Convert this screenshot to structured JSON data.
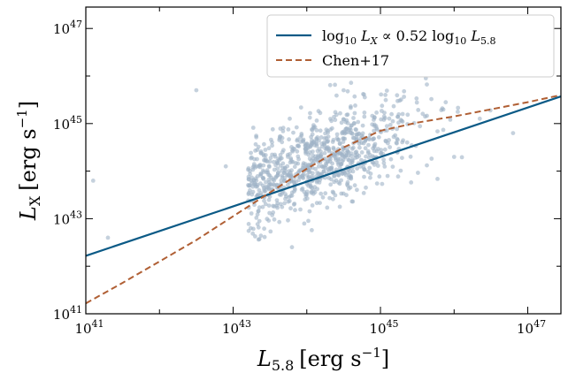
{
  "chart_data": {
    "type": "scatter",
    "title": "",
    "xlabel": {
      "var": "L",
      "sub": "5.8",
      "unit": "[erg s",
      "exp": "−1",
      "close": "]"
    },
    "ylabel": {
      "var": "L",
      "sub": "X",
      "unit": "[erg s",
      "exp": "−1",
      "close": "]"
    },
    "xscale": "log",
    "yscale": "log",
    "xlim_log10": [
      41,
      47.45
    ],
    "ylim_log10": [
      41,
      47.45
    ],
    "xticks": [
      {
        "base": "10",
        "exp": "41",
        "log": 41
      },
      {
        "base": "10",
        "exp": "43",
        "log": 43
      },
      {
        "base": "10",
        "exp": "45",
        "log": 45
      },
      {
        "base": "10",
        "exp": "47",
        "log": 47
      }
    ],
    "yticks": [
      {
        "base": "10",
        "exp": "41",
        "log": 41
      },
      {
        "base": "10",
        "exp": "43",
        "log": 43
      },
      {
        "base": "10",
        "exp": "45",
        "log": 45
      },
      {
        "base": "10",
        "exp": "47",
        "log": 47
      }
    ],
    "grid": false,
    "legend_position": "top-right",
    "colors": {
      "scatter": "#9fb3c6",
      "fit": "#0b5a86",
      "chen": "#b05f34"
    },
    "series": [
      {
        "name": "",
        "kind": "scatter",
        "x_log10": [
          41.1,
          41.3,
          42.5,
          42.9,
          43.7,
          44.5,
          46.8,
          46.0
        ],
        "y_log10": [
          43.8,
          42.6,
          45.7,
          44.1,
          43.8,
          45.7,
          44.8,
          44.3
        ]
      },
      {
        "name": "log10 L_X ∝ 0.52 log10 L_5.8",
        "kind": "line",
        "legend": {
          "pre": "log",
          "sub1": "10",
          "mid": " L",
          "sub2": "X",
          "rel": " ∝ 0.52 log",
          "sub3": "10",
          "mid2": " L",
          "sub4": "5.8"
        },
        "x_log10": [
          41,
          47.45
        ],
        "y_log10": [
          42.22,
          45.57
        ]
      },
      {
        "name": "Chen+17",
        "kind": "line",
        "dashed": true,
        "x_log10": [
          41,
          41.5,
          42,
          42.5,
          43,
          43.5,
          44,
          44.5,
          45,
          45.5,
          46,
          46.5,
          47,
          47.45
        ],
        "y_log10": [
          41.22,
          41.65,
          42.1,
          42.55,
          43.05,
          43.55,
          44.05,
          44.5,
          44.85,
          45.02,
          45.15,
          45.3,
          45.45,
          45.6
        ]
      }
    ]
  }
}
